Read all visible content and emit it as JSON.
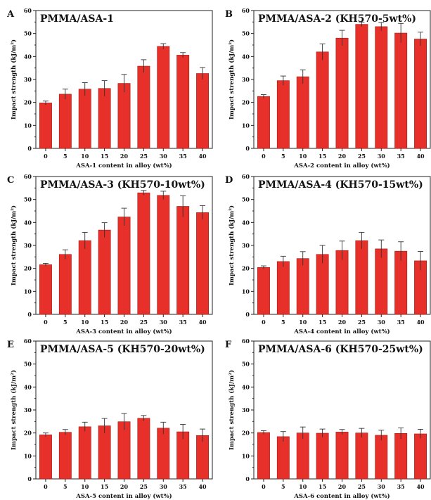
{
  "bar_color": "#e8302a",
  "bar_edge_color": "#a01a14",
  "chart_data": [
    {
      "type": "bar",
      "panel_letter": "A",
      "title": "PMMA/ASA-1",
      "xlabel": "ASA-1 content in alloy (wt%)",
      "ylabel": "Impact strength (kJ/m²)",
      "ylim": [
        0,
        60
      ],
      "yticks": [
        "0",
        "10",
        "20",
        "30",
        "40",
        "50",
        "60"
      ],
      "categories": [
        "0",
        "5",
        "10",
        "15",
        "20",
        "25",
        "30",
        "35",
        "40"
      ],
      "values": [
        19.8,
        23.6,
        25.8,
        26.1,
        28.3,
        35.8,
        44.4,
        40.6,
        32.6
      ],
      "errors": [
        0.8,
        2.2,
        2.8,
        3.4,
        3.9,
        2.8,
        1.2,
        1.1,
        2.6
      ]
    },
    {
      "type": "bar",
      "panel_letter": "B",
      "title": "PMMA/ASA-2 (KH570-5wt%)",
      "xlabel": "ASA-2 content in alloy (wt%)",
      "ylabel": "Impact strength (kJ/m²)",
      "ylim": [
        0,
        60
      ],
      "yticks": [
        "0",
        "10",
        "20",
        "30",
        "40",
        "50",
        "60"
      ],
      "categories": [
        "0",
        "5",
        "10",
        "15",
        "20",
        "25",
        "30",
        "35",
        "40"
      ],
      "values": [
        22.6,
        29.5,
        31.2,
        42.0,
        48.0,
        54.0,
        53.0,
        50.2,
        47.6
      ],
      "errors": [
        0.8,
        2.0,
        3.0,
        3.5,
        3.4,
        1.0,
        1.8,
        4.2,
        3.0
      ]
    },
    {
      "type": "bar",
      "panel_letter": "C",
      "title": "PMMA/ASA-3 (KH570-10wt%)",
      "xlabel": "ASA-3 content in alloy (wt%)",
      "ylabel": "Impact strength (kJ/m²)",
      "ylim": [
        0,
        60
      ],
      "yticks": [
        "0",
        "10",
        "20",
        "30",
        "40",
        "50",
        "60"
      ],
      "categories": [
        "0",
        "5",
        "10",
        "15",
        "20",
        "25",
        "30",
        "35",
        "40"
      ],
      "values": [
        21.6,
        26.1,
        32.1,
        36.7,
        42.4,
        52.9,
        51.8,
        47.0,
        44.3
      ],
      "errors": [
        0.6,
        2.0,
        3.6,
        3.2,
        3.8,
        1.0,
        1.8,
        4.6,
        3.0
      ]
    },
    {
      "type": "bar",
      "panel_letter": "D",
      "title": "PMMA/ASA-4 (KH570-15wt%)",
      "xlabel": "ASA-4 content in alloy (wt%)",
      "ylabel": "Impact strength (kJ/m²)",
      "ylim": [
        0,
        60
      ],
      "yticks": [
        "0",
        "10",
        "20",
        "30",
        "40",
        "50",
        "60"
      ],
      "categories": [
        "0",
        "5",
        "10",
        "15",
        "20",
        "25",
        "30",
        "35",
        "40"
      ],
      "values": [
        20.4,
        23.0,
        24.3,
        26.1,
        27.8,
        32.1,
        28.5,
        27.5,
        23.3
      ],
      "errors": [
        0.7,
        2.3,
        3.0,
        3.9,
        4.1,
        3.6,
        3.9,
        4.1,
        4.1
      ]
    },
    {
      "type": "bar",
      "panel_letter": "E",
      "title": "PMMA/ASA-5 (KH570-20wt%)",
      "xlabel": "ASA-5 content in alloy (wt%)",
      "ylabel": "Impact strength (kJ/m²)",
      "ylim": [
        0,
        60
      ],
      "yticks": [
        "0",
        "10",
        "20",
        "30",
        "40",
        "50",
        "60"
      ],
      "categories": [
        "0",
        "5",
        "10",
        "15",
        "20",
        "25",
        "30",
        "35",
        "40"
      ],
      "values": [
        19.2,
        20.3,
        22.7,
        23.1,
        24.9,
        26.4,
        22.1,
        20.5,
        18.9
      ],
      "errors": [
        0.8,
        1.2,
        2.0,
        3.2,
        3.6,
        1.2,
        2.6,
        3.2,
        2.8
      ]
    },
    {
      "type": "bar",
      "panel_letter": "F",
      "title": "PMMA/ASA-6 (KH570-25wt%)",
      "xlabel": "ASA-6 content in alloy (wt%)",
      "ylabel": "Impact strength (kJ/m²)",
      "ylim": [
        0,
        60
      ],
      "yticks": [
        "0",
        "10",
        "20",
        "30",
        "40",
        "50",
        "60"
      ],
      "categories": [
        "0",
        "5",
        "10",
        "15",
        "20",
        "25",
        "30",
        "35",
        "40"
      ],
      "values": [
        20.2,
        18.4,
        20.0,
        19.9,
        20.4,
        20.0,
        19.0,
        19.8,
        19.6
      ],
      "errors": [
        0.8,
        2.2,
        2.6,
        1.8,
        1.1,
        2.0,
        2.2,
        2.4,
        2.0
      ]
    }
  ]
}
